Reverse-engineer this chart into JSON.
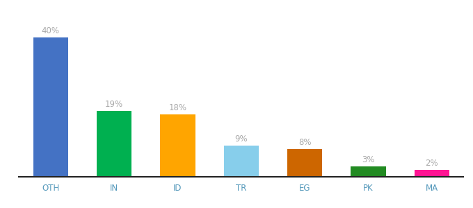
{
  "categories": [
    "OTH",
    "IN",
    "ID",
    "TR",
    "EG",
    "PK",
    "MA"
  ],
  "values": [
    40,
    19,
    18,
    9,
    8,
    3,
    2
  ],
  "labels": [
    "40%",
    "19%",
    "18%",
    "9%",
    "8%",
    "3%",
    "2%"
  ],
  "bar_colors": [
    "#4472C4",
    "#00B050",
    "#FFA500",
    "#87CEEB",
    "#CD6600",
    "#228B22",
    "#FF1493"
  ],
  "background_color": "#FFFFFF",
  "label_color": "#aaaaaa",
  "tick_color": "#5599BB",
  "label_fontsize": 8.5,
  "tick_fontsize": 8.5,
  "ylim": [
    0,
    46
  ],
  "bar_width": 0.55
}
